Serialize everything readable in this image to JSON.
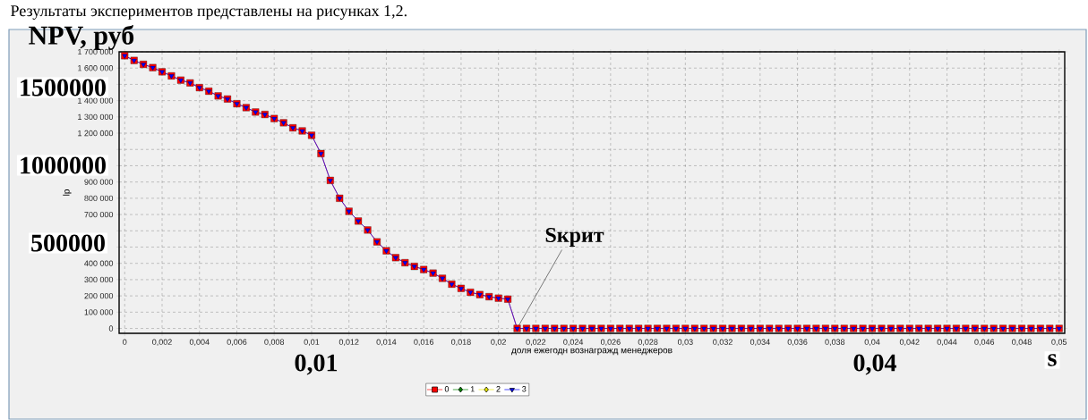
{
  "chart_data": {
    "type": "line",
    "title": "NPV, руб",
    "xlabel": "доля ежегодн вознагражд менеджеров",
    "ylabel": "lp",
    "x": [
      0,
      0.0005,
      0.001,
      0.0015,
      0.002,
      0.0025,
      0.003,
      0.0035,
      0.004,
      0.0045,
      0.005,
      0.0055,
      0.006,
      0.0065,
      0.007,
      0.0075,
      0.008,
      0.0085,
      0.009,
      0.0095,
      0.01,
      0.0105,
      0.011,
      0.0115,
      0.012,
      0.0125,
      0.013,
      0.0135,
      0.014,
      0.0145,
      0.015,
      0.0155,
      0.016,
      0.0165,
      0.017,
      0.0175,
      0.018,
      0.0185,
      0.019,
      0.0195,
      0.02,
      0.0205,
      0.021,
      0.0215,
      0.022,
      0.0225,
      0.023,
      0.0235,
      0.024,
      0.0245,
      0.025,
      0.0255,
      0.026,
      0.0265,
      0.027,
      0.0275,
      0.028,
      0.0285,
      0.029,
      0.0295,
      0.03,
      0.0305,
      0.031,
      0.0315,
      0.032,
      0.0325,
      0.033,
      0.0335,
      0.034,
      0.0345,
      0.035,
      0.0355,
      0.036,
      0.0365,
      0.037,
      0.0375,
      0.038,
      0.0385,
      0.039,
      0.0395,
      0.04,
      0.0405,
      0.041,
      0.0415,
      0.042,
      0.0425,
      0.043,
      0.0435,
      0.044,
      0.0445,
      0.045,
      0.0455,
      0.046,
      0.0465,
      0.047,
      0.0475,
      0.048,
      0.0485,
      0.049,
      0.0495,
      0.05
    ],
    "series": [
      {
        "name": "0",
        "color": "#ff0000",
        "marker": "square",
        "values": [
          1676000,
          1647000,
          1623000,
          1603000,
          1577000,
          1552000,
          1526000,
          1509000,
          1480000,
          1458000,
          1429000,
          1410000,
          1381000,
          1357000,
          1330000,
          1315000,
          1290000,
          1264000,
          1233000,
          1214000,
          1187000,
          1075000,
          910000,
          800000,
          720000,
          660000,
          605000,
          532000,
          477000,
          435000,
          404000,
          381000,
          362000,
          340000,
          308000,
          272000,
          246000,
          222000,
          208000,
          195000,
          186000,
          180000,
          0,
          0,
          0,
          0,
          0,
          0,
          0,
          0,
          0,
          0,
          0,
          0,
          0,
          0,
          0,
          0,
          0,
          0,
          0,
          0,
          0,
          0,
          0,
          0,
          0,
          0,
          0,
          0,
          0,
          0,
          0,
          0,
          0,
          0,
          0,
          0,
          0,
          0,
          0,
          0,
          0,
          0,
          0,
          0,
          0,
          0,
          0,
          0,
          0,
          0,
          0,
          0,
          0,
          0,
          0,
          0,
          0,
          0,
          0
        ]
      },
      {
        "name": "1",
        "color": "#008000",
        "marker": "diamond",
        "values": [
          null,
          null,
          null,
          null,
          null,
          null,
          null,
          null,
          null,
          null,
          null,
          null,
          null,
          null,
          null,
          null,
          null,
          null,
          null,
          null,
          null,
          null,
          null,
          null,
          null,
          null,
          null,
          null,
          null,
          null,
          null,
          null,
          null,
          null,
          null,
          null,
          null,
          null,
          null,
          null,
          null,
          null,
          null,
          null,
          null,
          null,
          null,
          null,
          null,
          null,
          null,
          null,
          null,
          null,
          null,
          null,
          null,
          null,
          null,
          null,
          null,
          null,
          null,
          null,
          null,
          null,
          null,
          null,
          null,
          null,
          null,
          null,
          null,
          null,
          null,
          null,
          null,
          null,
          null,
          null,
          null,
          null,
          null,
          null,
          null,
          null,
          null,
          null,
          null,
          null,
          null,
          null,
          null,
          null,
          null,
          null,
          null,
          null,
          null,
          null,
          null
        ]
      },
      {
        "name": "2",
        "color": "#e6e600",
        "marker": "diamond",
        "values": [
          null,
          null,
          null,
          null,
          null,
          null,
          null,
          null,
          null,
          null,
          null,
          null,
          null,
          null,
          null,
          null,
          null,
          null,
          null,
          null,
          null,
          null,
          null,
          null,
          null,
          null,
          null,
          null,
          null,
          null,
          null,
          null,
          null,
          null,
          null,
          null,
          null,
          null,
          null,
          null,
          null,
          null,
          null,
          null,
          null,
          null,
          null,
          null,
          null,
          null,
          null,
          null,
          null,
          null,
          null,
          null,
          null,
          null,
          null,
          null,
          null,
          null,
          null,
          null,
          null,
          null,
          null,
          null,
          null,
          null,
          null,
          null,
          null,
          null,
          null,
          null,
          null,
          null,
          null,
          null,
          null,
          null,
          null,
          null,
          null,
          null,
          null,
          null,
          null,
          null,
          null,
          null,
          null,
          null,
          null,
          null,
          null,
          null,
          null,
          null,
          null
        ]
      },
      {
        "name": "3",
        "color": "#0000ff",
        "marker": "triangle",
        "values": [
          1676000,
          1647000,
          1623000,
          1603000,
          1577000,
          1552000,
          1526000,
          1509000,
          1480000,
          1458000,
          1429000,
          1410000,
          1381000,
          1357000,
          1330000,
          1315000,
          1290000,
          1264000,
          1233000,
          1214000,
          1187000,
          1075000,
          910000,
          800000,
          720000,
          660000,
          605000,
          532000,
          477000,
          435000,
          404000,
          381000,
          362000,
          340000,
          308000,
          272000,
          246000,
          222000,
          208000,
          195000,
          186000,
          180000,
          0,
          0,
          0,
          0,
          0,
          0,
          0,
          0,
          0,
          0,
          0,
          0,
          0,
          0,
          0,
          0,
          0,
          0,
          0,
          0,
          0,
          0,
          0,
          0,
          0,
          0,
          0,
          0,
          0,
          0,
          0,
          0,
          0,
          0,
          0,
          0,
          0,
          0,
          0,
          0,
          0,
          0,
          0,
          0,
          0,
          0,
          0,
          0,
          0,
          0,
          0,
          0,
          0,
          0,
          0,
          0,
          0,
          0,
          0
        ]
      }
    ],
    "xlim": [
      -0.0003,
      0.0503
    ],
    "ylim": [
      -30000,
      1700000
    ],
    "xticks": [
      0,
      {
        "value": 0.002,
        "label": "0,002"
      },
      {
        "value": 0.004,
        "label": "0,004"
      },
      {
        "value": 0.006,
        "label": "0,006"
      },
      {
        "value": 0.008,
        "label": "0,008"
      },
      {
        "value": 0.01,
        "label": "0,01"
      },
      {
        "value": 0.012,
        "label": "0,012"
      },
      {
        "value": 0.014,
        "label": "0,014"
      },
      {
        "value": 0.016,
        "label": "0,016"
      },
      {
        "value": 0.018,
        "label": "0,018"
      },
      {
        "value": 0.02,
        "label": "0,02"
      },
      {
        "value": 0.022,
        "label": "0,022"
      },
      {
        "value": 0.024,
        "label": "0,024"
      },
      {
        "value": 0.026,
        "label": "0,026"
      },
      {
        "value": 0.028,
        "label": "0,028"
      },
      {
        "value": 0.03,
        "label": "0,03"
      },
      {
        "value": 0.032,
        "label": "0,032"
      },
      {
        "value": 0.034,
        "label": "0,034"
      },
      {
        "value": 0.036,
        "label": "0,036"
      },
      {
        "value": 0.038,
        "label": "0,038"
      },
      {
        "value": 0.04,
        "label": "0,04"
      },
      {
        "value": 0.042,
        "label": "0,042"
      },
      {
        "value": 0.044,
        "label": "0,044"
      },
      {
        "value": 0.046,
        "label": "0,046"
      },
      {
        "value": 0.048,
        "label": "0,048"
      },
      {
        "value": 0.05,
        "label": "0,05"
      }
    ],
    "yticks": [
      0,
      {
        "value": 100000,
        "label": "100 000"
      },
      {
        "value": 200000,
        "label": "200 000"
      },
      {
        "value": 300000,
        "label": "300 000"
      },
      {
        "value": 400000,
        "label": "400 000"
      },
      {
        "value": 500000,
        "label": null
      },
      {
        "value": 600000,
        "label": null
      },
      {
        "value": 700000,
        "label": "700 000"
      },
      {
        "value": 800000,
        "label": "800 000"
      },
      {
        "value": 900000,
        "label": "900 000"
      },
      {
        "value": 1000000,
        "label": null
      },
      {
        "value": 1100000,
        "label": null
      },
      {
        "value": 1200000,
        "label": "1 200 000"
      },
      {
        "value": 1300000,
        "label": "1 300 000"
      },
      {
        "value": 1400000,
        "label": "1 400 000"
      },
      {
        "value": 1500000,
        "label": null
      },
      {
        "value": 1600000,
        "label": "1 600 000"
      },
      {
        "value": 1700000,
        "label": "1 700 000"
      }
    ],
    "grid": true,
    "legend": "bottom",
    "annotations": [
      "Результаты экспериментов представлены на рисунках 1,2.",
      "s",
      "1500000",
      "1000000",
      "500000",
      "0,01",
      "0,04",
      {
        "text": "Sкрит",
        "x": 0.021,
        "y": 0
      }
    ]
  }
}
